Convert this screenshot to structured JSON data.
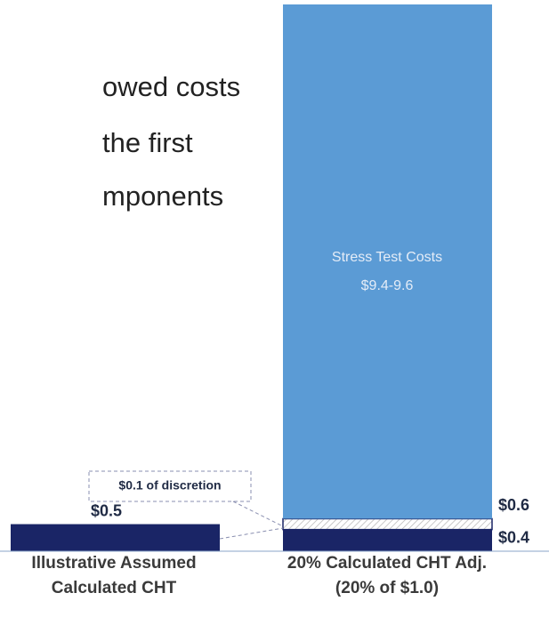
{
  "chart_data": {
    "type": "stacked_bar",
    "text_lines": [
      "owed costs",
      "the first",
      "mponents"
    ],
    "categories": [
      [
        "Illustrative Assumed",
        "Calculated CHT"
      ],
      [
        "20% Calculated CHT Adj.",
        "(20% of $1.0)"
      ]
    ],
    "series": [
      {
        "color": "#1a2566",
        "values": [
          0.5,
          0.4
        ],
        "value_labels": [
          "$0.5",
          "$0.4"
        ]
      },
      {
        "color": "#ffffff",
        "pattern": "hatch",
        "values": [
          null,
          0.2
        ]
      },
      {
        "name": "Stress Test Costs",
        "color": "#5b9bd5",
        "values": [
          null,
          9.5
        ],
        "value_labels": [
          null,
          "$9.4-9.6"
        ]
      }
    ],
    "annotations": [
      "$0.6",
      "$0.1 of discretion"
    ],
    "ylim": [
      0,
      10.1
    ]
  }
}
